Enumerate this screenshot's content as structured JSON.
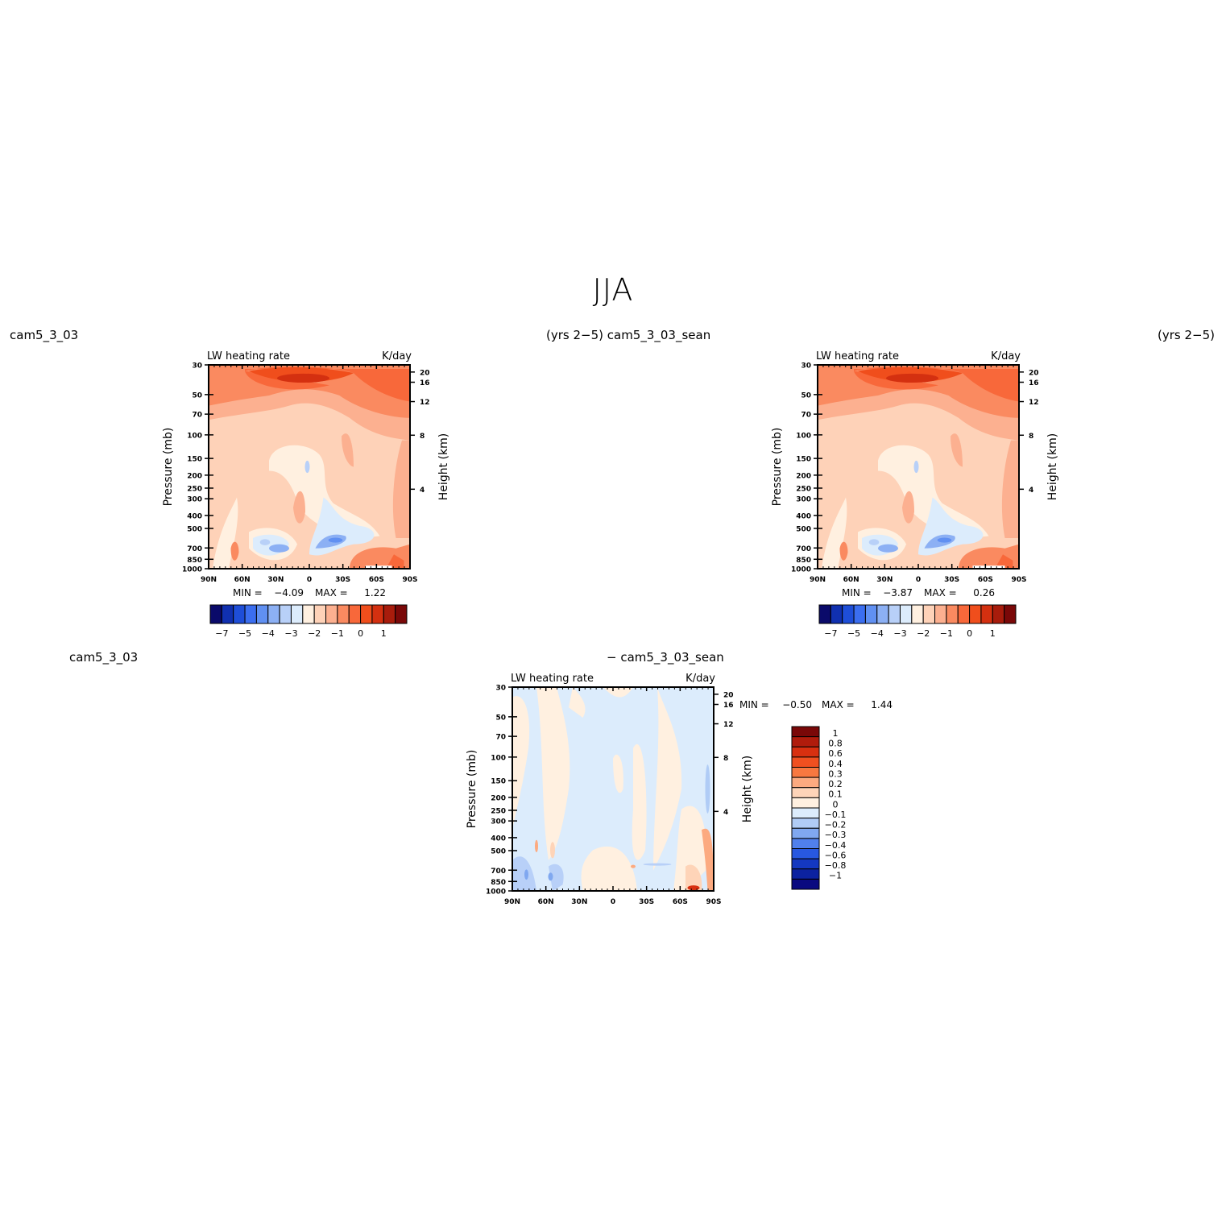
{
  "figure": {
    "title": "JJA",
    "header_left_1": "cam5_3_03",
    "header_mid_1": "(yrs 2−5) cam5_3_03_sean",
    "header_right_1": "(yrs 2−5)",
    "header_left_2": "cam5_3_03",
    "header_mid_2": "− cam5_3_03_sean"
  },
  "chart_data": [
    {
      "type": "heatmap",
      "panel": "cam5_3_03",
      "title_left": "LW heating rate",
      "title_right": "K/day",
      "ylabel": "Pressure (mb)",
      "ylabel_right": "Height (km)",
      "x_ticks": [
        "90N",
        "60N",
        "30N",
        "0",
        "30S",
        "60S",
        "90S"
      ],
      "y_ticks": [
        "30",
        "50",
        "70",
        "100",
        "150",
        "200",
        "250",
        "300",
        "400",
        "500",
        "700",
        "850",
        "1000"
      ],
      "y_right_ticks": [
        "20",
        "16",
        "12",
        "8",
        "4"
      ],
      "ylim": [
        1000,
        30
      ],
      "min_label": "MIN =",
      "min_value": "−4.09",
      "max_label": "MAX =",
      "max_value": "1.22",
      "colorbar_labels": [
        "−7",
        "−5",
        "−4",
        "−3",
        "−2",
        "−1",
        "0",
        "1"
      ],
      "colorbar_colors": [
        "#0a0a6a",
        "#1030b0",
        "#1e4ed8",
        "#3b6ef0",
        "#6090f2",
        "#8cb0f4",
        "#b8d0f8",
        "#dcecfc",
        "#fff0e0",
        "#fed2b8",
        "#fcb090",
        "#fa8a60",
        "#f8683a",
        "#f04e1c",
        "#d43010",
        "#a81c0c",
        "#7a0808"
      ]
    },
    {
      "type": "heatmap",
      "panel": "cam5_3_03_sean",
      "title_left": "LW heating rate",
      "title_right": "K/day",
      "ylabel": "Pressure (mb)",
      "ylabel_right": "Height (km)",
      "x_ticks": [
        "90N",
        "60N",
        "30N",
        "0",
        "30S",
        "60S",
        "90S"
      ],
      "y_ticks": [
        "30",
        "50",
        "70",
        "100",
        "150",
        "200",
        "250",
        "300",
        "400",
        "500",
        "700",
        "850",
        "1000"
      ],
      "y_right_ticks": [
        "20",
        "16",
        "12",
        "8",
        "4"
      ],
      "ylim": [
        1000,
        30
      ],
      "min_label": "MIN =",
      "min_value": "−3.87",
      "max_label": "MAX =",
      "max_value": "0.26",
      "colorbar_labels": [
        "−7",
        "−5",
        "−4",
        "−3",
        "−2",
        "−1",
        "0",
        "1"
      ],
      "colorbar_colors": [
        "#0a0a6a",
        "#1030b0",
        "#1e4ed8",
        "#3b6ef0",
        "#6090f2",
        "#8cb0f4",
        "#b8d0f8",
        "#dcecfc",
        "#fff0e0",
        "#fed2b8",
        "#fcb090",
        "#fa8a60",
        "#f8683a",
        "#f04e1c",
        "#d43010",
        "#a81c0c",
        "#7a0808"
      ]
    },
    {
      "type": "heatmap",
      "panel": "difference",
      "title_left": "LW heating rate",
      "title_right": "K/day",
      "ylabel": "Pressure (mb)",
      "ylabel_right": "Height (km)",
      "x_ticks": [
        "90N",
        "60N",
        "30N",
        "0",
        "30S",
        "60S",
        "90S"
      ],
      "y_ticks": [
        "30",
        "50",
        "70",
        "100",
        "150",
        "200",
        "250",
        "300",
        "400",
        "500",
        "700",
        "850",
        "1000"
      ],
      "y_right_ticks": [
        "20",
        "16",
        "12",
        "8",
        "4"
      ],
      "ylim": [
        1000,
        30
      ],
      "min_label": "MIN =",
      "min_value": "−0.50",
      "max_label": "MAX =",
      "max_value": "1.44",
      "colorbar_labels": [
        "1",
        "0.8",
        "0.6",
        "0.4",
        "0.3",
        "0.2",
        "0.1",
        "0",
        "−0.1",
        "−0.2",
        "−0.3",
        "−0.4",
        "−0.6",
        "−0.8",
        "−1"
      ],
      "colorbar_colors": [
        "#7a0808",
        "#b01c0c",
        "#d83010",
        "#f05020",
        "#f87840",
        "#fcaa80",
        "#fed4b8",
        "#fff0e0",
        "#dcecfc",
        "#b0ccf6",
        "#80a8f0",
        "#5080ec",
        "#2858e0",
        "#1438c0",
        "#0c22a0",
        "#0a0a80"
      ]
    }
  ]
}
